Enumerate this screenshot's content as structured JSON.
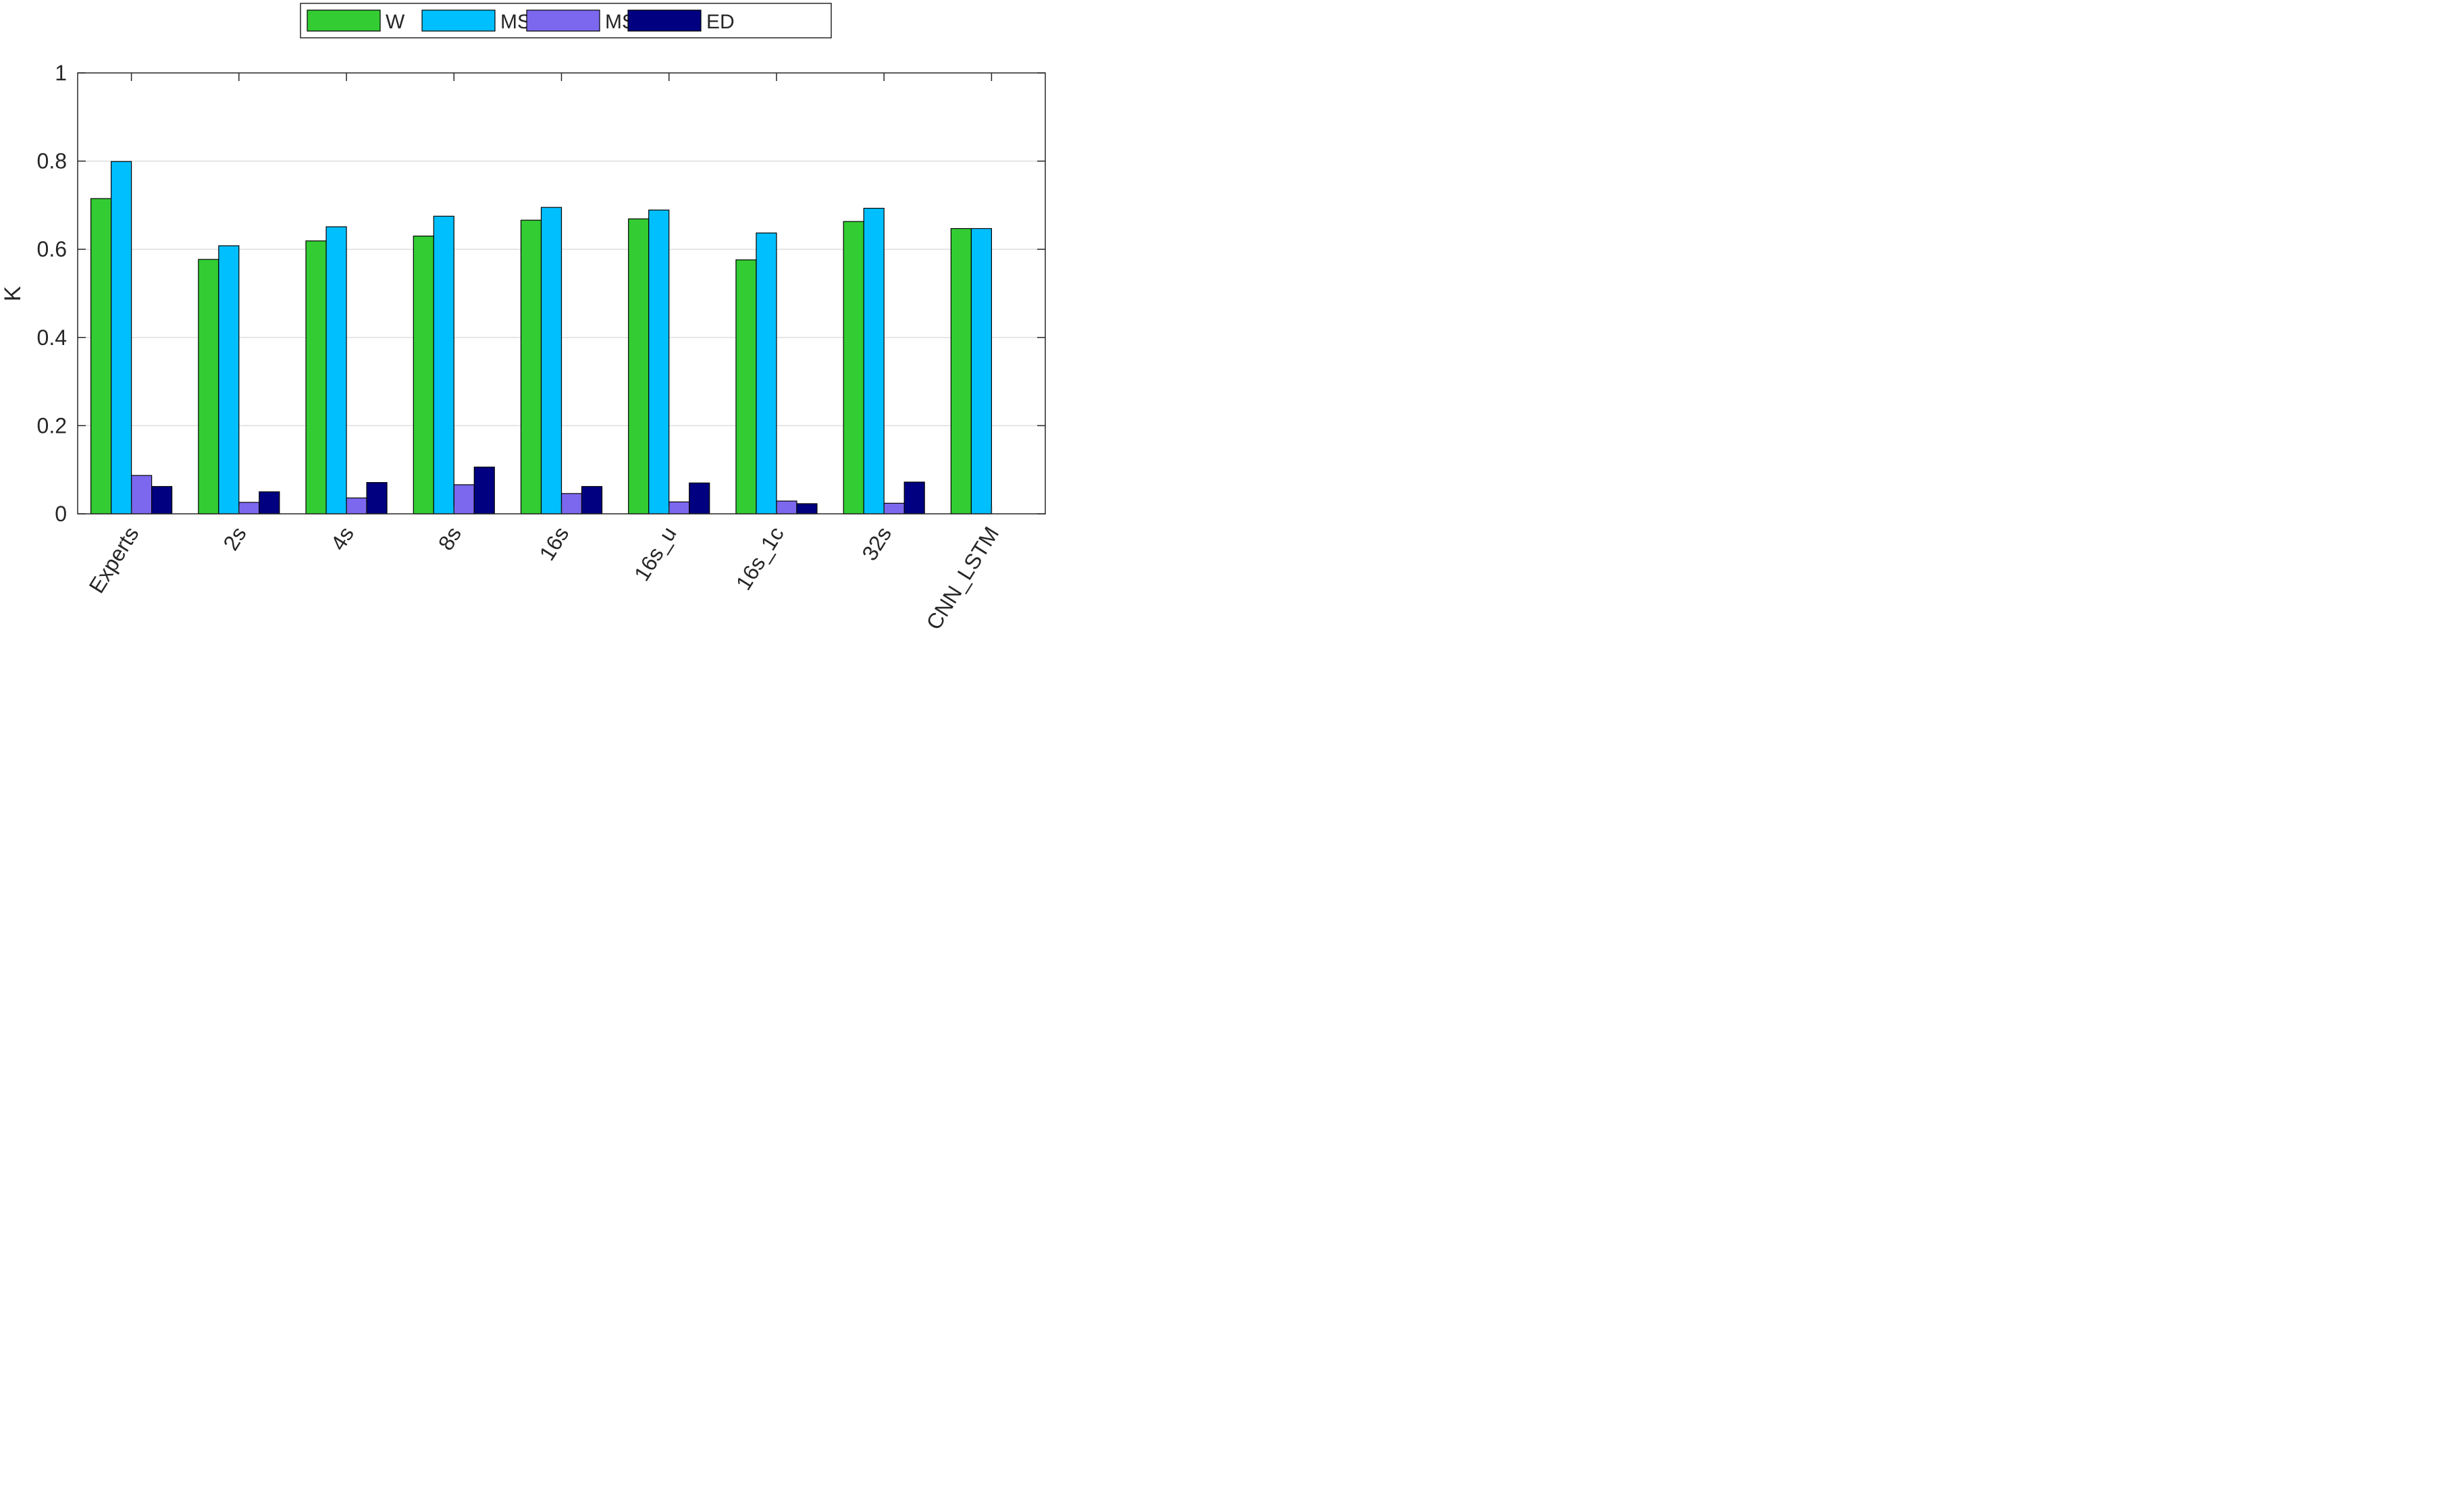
{
  "chart_data": {
    "type": "bar",
    "title": "",
    "xlabel": "",
    "ylabel": "K",
    "ylim": [
      0,
      1
    ],
    "yticks": [
      "0",
      "0.2",
      "0.4",
      "0.6",
      "0.8",
      "1"
    ],
    "grid": "horizontal",
    "legend_position": "top-center",
    "categories": [
      "Experts",
      "2s",
      "4s",
      "8s",
      "16s",
      "16s_u",
      "16s_1c",
      "32s",
      "CNN_LSTM"
    ],
    "series": [
      {
        "name": "W",
        "color": "#33cc33",
        "values": [
          0.715,
          0.577,
          0.619,
          0.63,
          0.666,
          0.669,
          0.576,
          0.663,
          0.647
        ]
      },
      {
        "name": "MSE",
        "color": "#00bfff",
        "values": [
          0.799,
          0.608,
          0.651,
          0.675,
          0.695,
          0.689,
          0.637,
          0.693,
          0.647
        ]
      },
      {
        "name": "MSEc",
        "color": "#7b68ee",
        "values": [
          0.087,
          0.026,
          0.036,
          0.066,
          0.046,
          0.027,
          0.029,
          0.024,
          null
        ]
      },
      {
        "name": "ED",
        "color": "#000080",
        "values": [
          0.062,
          0.05,
          0.071,
          0.106,
          0.062,
          0.07,
          0.023,
          0.072,
          null
        ]
      }
    ]
  }
}
